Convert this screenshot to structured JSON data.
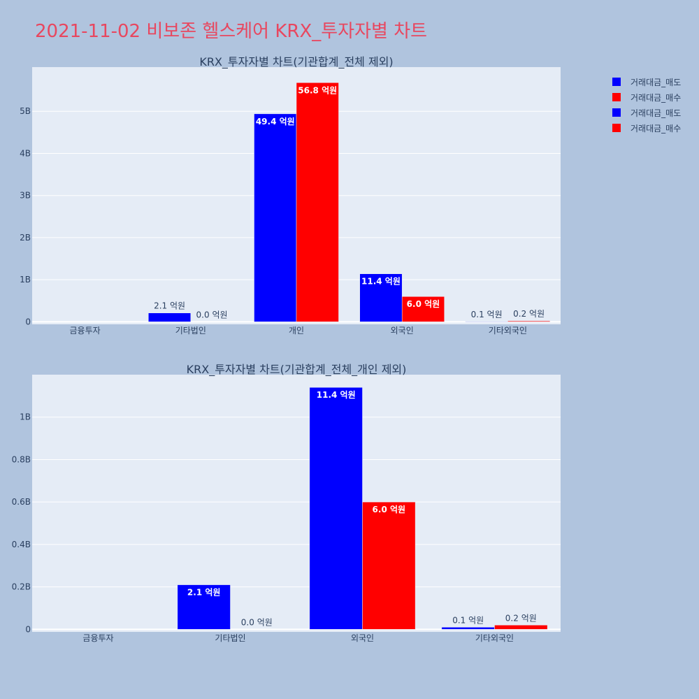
{
  "title": "2021-11-02 비보존 헬스케어 KRX_투자자별 차트",
  "colors": {
    "sell": "#0000ff",
    "buy": "#ff0000"
  },
  "legend": [
    {
      "label": "거래대금_매도",
      "color": "#0000ff"
    },
    {
      "label": "거래대금_매수",
      "color": "#ff0000"
    },
    {
      "label": "거래대금_매도",
      "color": "#0000ff"
    },
    {
      "label": "거래대금_매수",
      "color": "#ff0000"
    }
  ],
  "chart_data": [
    {
      "type": "bar",
      "title": "KRX_투자자별 차트(기관합계_전체 제외)",
      "categories": [
        "금융투자",
        "기타법인",
        "개인",
        "외국인",
        "기타외국인"
      ],
      "y_ticks": [
        0,
        1000000000,
        2000000000,
        3000000000,
        4000000000,
        5000000000
      ],
      "y_tick_labels": [
        "0",
        "1B",
        "2B",
        "3B",
        "4B",
        "5B"
      ],
      "ylim": [
        -60000000,
        6050000000
      ],
      "series": [
        {
          "name": "거래대금_매도",
          "color": "#0000ff",
          "values": [
            0,
            210000000,
            4940000000,
            1140000000,
            10000000
          ],
          "labels": [
            "",
            "2.1 억원",
            "49.4 억원",
            "11.4 억원",
            "0.1 억원"
          ]
        },
        {
          "name": "거래대금_매수",
          "color": "#ff0000",
          "values": [
            0,
            0,
            5680000000,
            600000000,
            20000000
          ],
          "labels": [
            "",
            "0.0 억원",
            "56.8 억원",
            "6.0 억원",
            "0.2 억원"
          ]
        }
      ]
    },
    {
      "type": "bar",
      "title": "KRX_투자자별 차트(기관합계_전체_개인 제외)",
      "categories": [
        "금융투자",
        "기타법인",
        "외국인",
        "기타외국인"
      ],
      "y_ticks": [
        0,
        200000000,
        400000000,
        600000000,
        800000000,
        1000000000
      ],
      "y_tick_labels": [
        "0",
        "0.2B",
        "0.4B",
        "0.6B",
        "0.8B",
        "1B"
      ],
      "ylim": [
        -12000000,
        1200000000
      ],
      "series": [
        {
          "name": "거래대금_매도",
          "color": "#0000ff",
          "values": [
            0,
            210000000,
            1140000000,
            10000000
          ],
          "labels": [
            "",
            "2.1 억원",
            "11.4 억원",
            "0.1 억원"
          ]
        },
        {
          "name": "거래대금_매수",
          "color": "#ff0000",
          "values": [
            0,
            0,
            600000000,
            20000000
          ],
          "labels": [
            "",
            "0.0 억원",
            "6.0 억원",
            "0.2 억원"
          ]
        }
      ]
    }
  ]
}
